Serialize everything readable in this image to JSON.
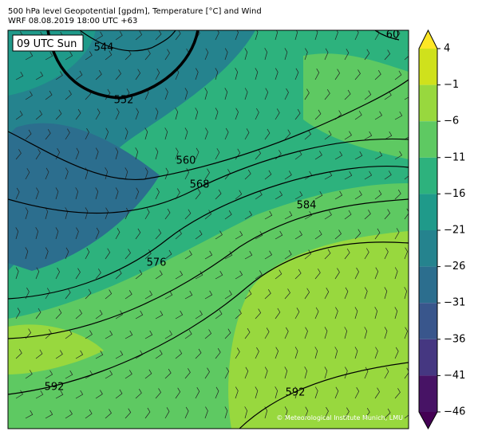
{
  "header": {
    "title": "500 hPa level Geopotential [gpdm], Temperature [°C] and Wind",
    "subtitle": "WRF 08.08.2019 18:00 UTC +63"
  },
  "map": {
    "time_label": "09 UTC Sun",
    "credit": "© Meteorological Institute Munich, LMU",
    "contour_labels": [
      544,
      552,
      560,
      568,
      576,
      584,
      592,
      592,
      60
    ]
  },
  "colorbar": {
    "ticks": [
      4,
      {
        "value": -1,
        "label": "−1"
      },
      {
        "value": -6,
        "label": "−6"
      },
      {
        "value": -11,
        "label": "−11"
      },
      {
        "value": -16,
        "label": "−16"
      },
      {
        "value": -21,
        "label": "−21"
      },
      {
        "value": -26,
        "label": "−26"
      },
      {
        "value": -31,
        "label": "−31"
      },
      {
        "value": -36,
        "label": "−36"
      },
      {
        "value": -41,
        "label": "−41"
      },
      {
        "value": -46,
        "label": "−46"
      }
    ],
    "colors": [
      "#cfe11c",
      "#98d83e",
      "#5ec962",
      "#2db27d",
      "#1f9a8a",
      "#25838e",
      "#2c6e8e",
      "#39568c",
      "#453781",
      "#471365"
    ],
    "over_color": "#fde725",
    "under_color": "#440154"
  }
}
